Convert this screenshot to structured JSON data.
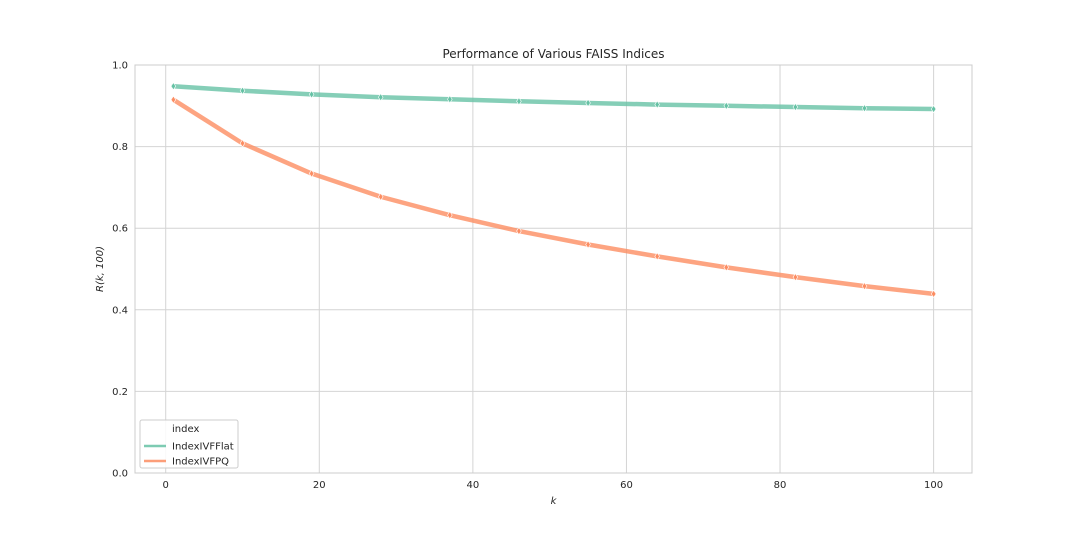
{
  "chart_data": {
    "type": "line",
    "title": "Performance of Various FAISS Indices",
    "xlabel": "k",
    "ylabel": "R(k, 100)",
    "xlim": [
      -4,
      105
    ],
    "ylim": [
      0.0,
      1.0
    ],
    "x_ticks": [
      0,
      20,
      40,
      60,
      80,
      100
    ],
    "y_ticks": [
      0.0,
      0.2,
      0.4,
      0.6,
      0.8,
      1.0
    ],
    "x_tick_labels": [
      "0",
      "20",
      "40",
      "60",
      "80",
      "100"
    ],
    "y_tick_labels": [
      "0.0",
      "0.2",
      "0.4",
      "0.6",
      "0.8",
      "1.0"
    ],
    "grid": true,
    "legend": {
      "title": "index",
      "placement": "lower-left"
    },
    "x": [
      1,
      10,
      19,
      28,
      37,
      46,
      55,
      64,
      73,
      82,
      91,
      100
    ],
    "series": [
      {
        "name": "IndexIVFFlat",
        "color": "#66c2a5",
        "values": [
          0.948,
          0.937,
          0.928,
          0.921,
          0.916,
          0.911,
          0.907,
          0.903,
          0.9,
          0.897,
          0.894,
          0.892
        ]
      },
      {
        "name": "IndexIVFPQ",
        "color": "#fc8d62",
        "values": [
          0.915,
          0.808,
          0.734,
          0.677,
          0.632,
          0.593,
          0.56,
          0.531,
          0.504,
          0.48,
          0.458,
          0.439
        ]
      }
    ]
  }
}
